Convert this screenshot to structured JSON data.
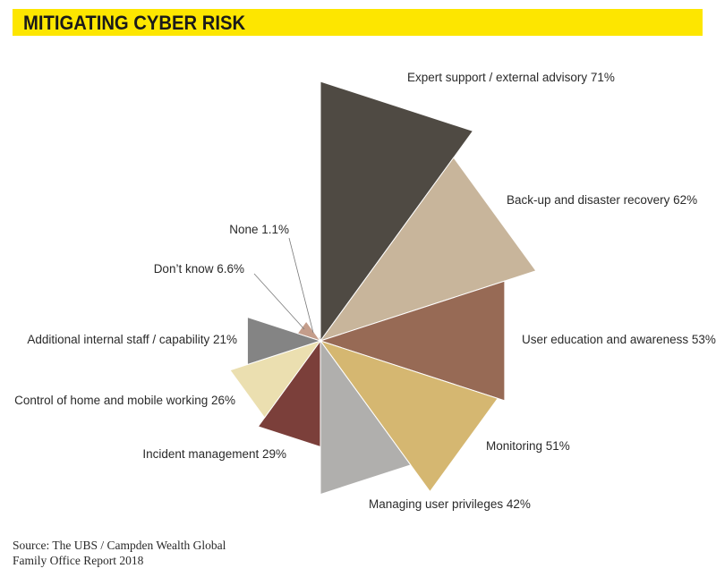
{
  "banner": {
    "title": "MITIGATING CYBER RISK"
  },
  "source": {
    "line1": "Source: The UBS / Campden Wealth Global",
    "line2": "Family Office Report 2018"
  },
  "chart_data": {
    "type": "polar-area",
    "categories": [
      "Expert support / external advisory",
      "Back-up and disaster recovery",
      "User education and awareness",
      "Monitoring",
      "Managing user privileges",
      "Incident management",
      "Control of home and mobile working",
      "Additional internal staff / capability",
      "Don’t know",
      "None"
    ],
    "values": [
      71,
      62,
      53,
      51,
      42,
      29,
      26,
      21,
      6.6,
      1.1
    ],
    "labels": [
      "Expert support / external advisory 71%",
      "Back-up and disaster recovery 62%",
      "User education and awareness 53%",
      "Monitoring 51%",
      "Managing user privileges 42%",
      "Incident management 29%",
      "Control of home and mobile working 26%",
      "Additional internal staff / capability 21%",
      "Don’t know 6.6%",
      "None 1.1%"
    ],
    "colors": [
      "#4f4a43",
      "#c8b59b",
      "#976a55",
      "#d5b771",
      "#b0afad",
      "#7b3f3a",
      "#ebdfb0",
      "#848484",
      "#c49d8b",
      "#bfbab3"
    ],
    "unit": "%"
  }
}
